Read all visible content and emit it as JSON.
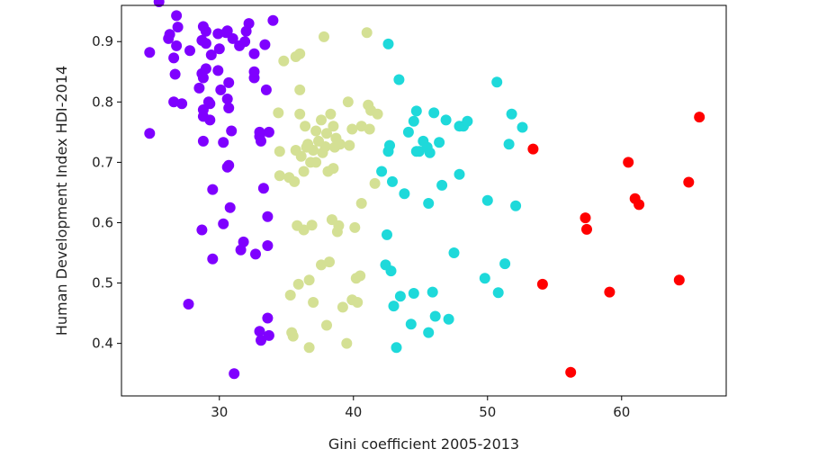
{
  "chart_data": {
    "type": "scatter",
    "xlabel": "Gini coefficient 2005-2013",
    "ylabel": "Human Development Index HDI-2014",
    "xlim": [
      22.7,
      67.8
    ],
    "ylim": [
      0.313,
      0.96
    ],
    "xticks": [
      30,
      40,
      50,
      60
    ],
    "yticks": [
      0.4,
      0.5,
      0.6,
      0.7,
      0.8,
      0.9
    ],
    "grid": false,
    "legend": "none",
    "series": [
      {
        "color": "#7f00ff",
        "points": [
          [
            24.8,
            0.882
          ],
          [
            24.8,
            0.748
          ],
          [
            25.5,
            0.966
          ],
          [
            26.2,
            0.905
          ],
          [
            26.3,
            0.912
          ],
          [
            26.6,
            0.873
          ],
          [
            26.7,
            0.846
          ],
          [
            26.8,
            0.893
          ],
          [
            26.6,
            0.8
          ],
          [
            26.8,
            0.943
          ],
          [
            26.9,
            0.924
          ],
          [
            27.2,
            0.797
          ],
          [
            27.8,
            0.885
          ],
          [
            27.7,
            0.465
          ],
          [
            28.7,
            0.847
          ],
          [
            28.5,
            0.823
          ],
          [
            28.8,
            0.84
          ],
          [
            28.8,
            0.925
          ],
          [
            28.7,
            0.902
          ],
          [
            28.8,
            0.787
          ],
          [
            28.8,
            0.776
          ],
          [
            28.8,
            0.735
          ],
          [
            28.7,
            0.588
          ],
          [
            29.0,
            0.917
          ],
          [
            29.0,
            0.897
          ],
          [
            29.0,
            0.855
          ],
          [
            29.2,
            0.8
          ],
          [
            29.3,
            0.797
          ],
          [
            29.4,
            0.878
          ],
          [
            29.3,
            0.77
          ],
          [
            29.5,
            0.655
          ],
          [
            29.5,
            0.54
          ],
          [
            29.9,
            0.852
          ],
          [
            29.9,
            0.913
          ],
          [
            30.0,
            0.888
          ],
          [
            30.1,
            0.82
          ],
          [
            30.3,
            0.733
          ],
          [
            30.3,
            0.598
          ],
          [
            30.5,
            0.915
          ],
          [
            30.6,
            0.918
          ],
          [
            30.7,
            0.832
          ],
          [
            30.6,
            0.805
          ],
          [
            30.7,
            0.79
          ],
          [
            30.6,
            0.692
          ],
          [
            30.7,
            0.695
          ],
          [
            30.8,
            0.625
          ],
          [
            30.9,
            0.752
          ],
          [
            31.0,
            0.905
          ],
          [
            31.1,
            0.35
          ],
          [
            31.5,
            0.893
          ],
          [
            31.6,
            0.555
          ],
          [
            31.8,
            0.568
          ],
          [
            31.9,
            0.9
          ],
          [
            32.0,
            0.917
          ],
          [
            32.2,
            0.93
          ],
          [
            32.6,
            0.88
          ],
          [
            32.6,
            0.84
          ],
          [
            32.6,
            0.85
          ],
          [
            32.7,
            0.548
          ],
          [
            33.0,
            0.743
          ],
          [
            33.0,
            0.75
          ],
          [
            33.0,
            0.42
          ],
          [
            33.1,
            0.735
          ],
          [
            33.1,
            0.405
          ],
          [
            33.3,
            0.657
          ],
          [
            33.4,
            0.895
          ],
          [
            33.5,
            0.82
          ],
          [
            33.6,
            0.61
          ],
          [
            33.6,
            0.562
          ],
          [
            33.6,
            0.442
          ],
          [
            33.7,
            0.413
          ],
          [
            33.7,
            0.75
          ],
          [
            34.0,
            0.935
          ]
        ]
      },
      {
        "color": "#d4e094",
        "points": [
          [
            34.4,
            0.782
          ],
          [
            34.5,
            0.718
          ],
          [
            34.5,
            0.678
          ],
          [
            34.8,
            0.868
          ],
          [
            35.2,
            0.675
          ],
          [
            35.3,
            0.48
          ],
          [
            35.4,
            0.418
          ],
          [
            35.5,
            0.412
          ],
          [
            35.6,
            0.668
          ],
          [
            35.7,
            0.875
          ],
          [
            35.7,
            0.72
          ],
          [
            35.8,
            0.595
          ],
          [
            35.9,
            0.498
          ],
          [
            36.0,
            0.88
          ],
          [
            36.0,
            0.82
          ],
          [
            36.0,
            0.78
          ],
          [
            36.1,
            0.71
          ],
          [
            36.3,
            0.685
          ],
          [
            36.3,
            0.588
          ],
          [
            36.4,
            0.76
          ],
          [
            36.5,
            0.725
          ],
          [
            36.6,
            0.73
          ],
          [
            36.7,
            0.505
          ],
          [
            36.7,
            0.393
          ],
          [
            36.8,
            0.7
          ],
          [
            36.9,
            0.596
          ],
          [
            37.0,
            0.468
          ],
          [
            37.0,
            0.72
          ],
          [
            37.2,
            0.752
          ],
          [
            37.2,
            0.7
          ],
          [
            37.4,
            0.735
          ],
          [
            37.6,
            0.77
          ],
          [
            37.6,
            0.53
          ],
          [
            37.7,
            0.716
          ],
          [
            37.8,
            0.908
          ],
          [
            37.9,
            0.726
          ],
          [
            38.0,
            0.43
          ],
          [
            38.0,
            0.748
          ],
          [
            38.1,
            0.685
          ],
          [
            38.2,
            0.535
          ],
          [
            38.3,
            0.78
          ],
          [
            38.4,
            0.605
          ],
          [
            38.5,
            0.69
          ],
          [
            38.5,
            0.76
          ],
          [
            38.6,
            0.725
          ],
          [
            38.7,
            0.74
          ],
          [
            38.8,
            0.585
          ],
          [
            38.9,
            0.595
          ],
          [
            39.0,
            0.73
          ],
          [
            39.2,
            0.46
          ],
          [
            39.5,
            0.4
          ],
          [
            39.6,
            0.8
          ],
          [
            39.7,
            0.728
          ],
          [
            39.9,
            0.755
          ],
          [
            39.9,
            0.472
          ],
          [
            40.1,
            0.592
          ],
          [
            40.2,
            0.508
          ],
          [
            40.3,
            0.468
          ],
          [
            40.5,
            0.512
          ],
          [
            40.6,
            0.76
          ],
          [
            40.6,
            0.632
          ],
          [
            41.0,
            0.915
          ],
          [
            41.1,
            0.795
          ],
          [
            41.2,
            0.755
          ],
          [
            41.3,
            0.786
          ],
          [
            41.6,
            0.665
          ],
          [
            41.8,
            0.78
          ]
        ]
      },
      {
        "color": "#1ed9da",
        "points": [
          [
            42.1,
            0.685
          ],
          [
            42.4,
            0.53
          ],
          [
            42.5,
            0.58
          ],
          [
            42.6,
            0.718
          ],
          [
            42.6,
            0.896
          ],
          [
            42.7,
            0.728
          ],
          [
            42.8,
            0.52
          ],
          [
            42.9,
            0.668
          ],
          [
            43.0,
            0.462
          ],
          [
            43.2,
            0.393
          ],
          [
            43.4,
            0.837
          ],
          [
            43.5,
            0.478
          ],
          [
            43.8,
            0.648
          ],
          [
            44.1,
            0.75
          ],
          [
            44.3,
            0.432
          ],
          [
            44.5,
            0.483
          ],
          [
            44.5,
            0.768
          ],
          [
            44.7,
            0.785
          ],
          [
            44.7,
            0.718
          ],
          [
            44.9,
            0.718
          ],
          [
            45.2,
            0.735
          ],
          [
            45.5,
            0.725
          ],
          [
            45.6,
            0.632
          ],
          [
            45.6,
            0.418
          ],
          [
            45.7,
            0.716
          ],
          [
            45.9,
            0.485
          ],
          [
            46.0,
            0.782
          ],
          [
            46.1,
            0.445
          ],
          [
            46.4,
            0.733
          ],
          [
            46.6,
            0.662
          ],
          [
            46.9,
            0.77
          ],
          [
            47.1,
            0.44
          ],
          [
            47.5,
            0.55
          ],
          [
            47.9,
            0.68
          ],
          [
            47.9,
            0.76
          ],
          [
            48.2,
            0.76
          ],
          [
            48.5,
            0.768
          ],
          [
            49.8,
            0.508
          ],
          [
            50.0,
            0.637
          ],
          [
            50.7,
            0.833
          ],
          [
            50.8,
            0.484
          ],
          [
            51.3,
            0.532
          ],
          [
            51.6,
            0.73
          ],
          [
            51.8,
            0.78
          ],
          [
            52.1,
            0.628
          ],
          [
            52.6,
            0.758
          ]
        ]
      },
      {
        "color": "#ff0000",
        "points": [
          [
            53.4,
            0.722
          ],
          [
            54.1,
            0.498
          ],
          [
            56.2,
            0.352
          ],
          [
            57.3,
            0.608
          ],
          [
            57.4,
            0.589
          ],
          [
            59.1,
            0.485
          ],
          [
            60.5,
            0.7
          ],
          [
            61.0,
            0.64
          ],
          [
            61.3,
            0.63
          ],
          [
            64.3,
            0.505
          ],
          [
            65.0,
            0.667
          ],
          [
            65.8,
            0.775
          ]
        ]
      }
    ]
  }
}
